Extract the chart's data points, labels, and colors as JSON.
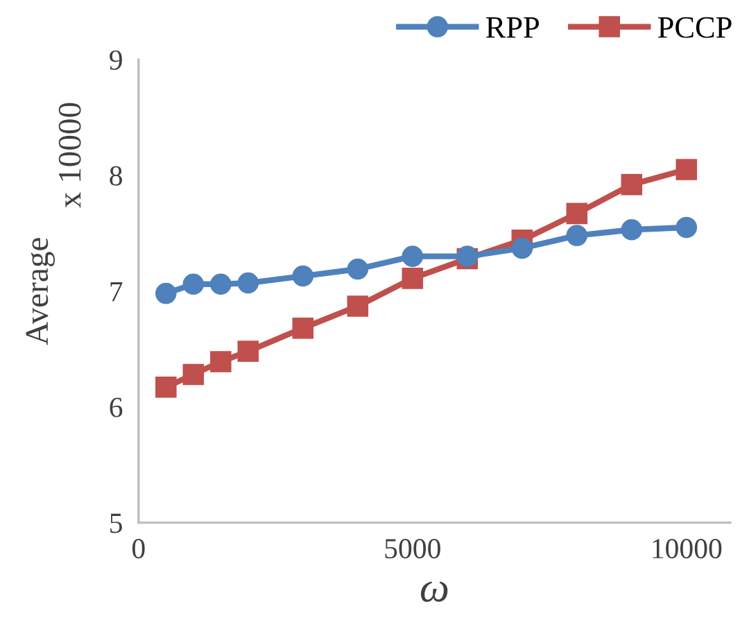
{
  "chart_data": {
    "type": "line",
    "xlabel": "ω",
    "ylabel": "Average",
    "annotations": [
      "x 10000"
    ],
    "x": [
      500,
      1000,
      1500,
      2000,
      3000,
      4000,
      5000,
      6000,
      7000,
      8000,
      9000,
      10000
    ],
    "series": [
      {
        "name": "RPP",
        "color": "#4f81bd",
        "marker": "circle",
        "values": [
          6.98,
          7.06,
          7.06,
          7.07,
          7.13,
          7.19,
          7.3,
          7.3,
          7.37,
          7.48,
          7.53,
          7.55
        ]
      },
      {
        "name": "PCCP",
        "color": "#c0504d",
        "marker": "square",
        "values": [
          6.17,
          6.28,
          6.39,
          6.48,
          6.68,
          6.87,
          7.11,
          7.28,
          7.44,
          7.67,
          7.92,
          8.05
        ]
      }
    ],
    "xlim": [
      0,
      10800
    ],
    "xticks": [
      0,
      5000,
      10000
    ],
    "ylim": [
      5,
      9
    ],
    "yticks": [
      5,
      6,
      7,
      8,
      9
    ],
    "grid": false,
    "legend": "top right"
  }
}
